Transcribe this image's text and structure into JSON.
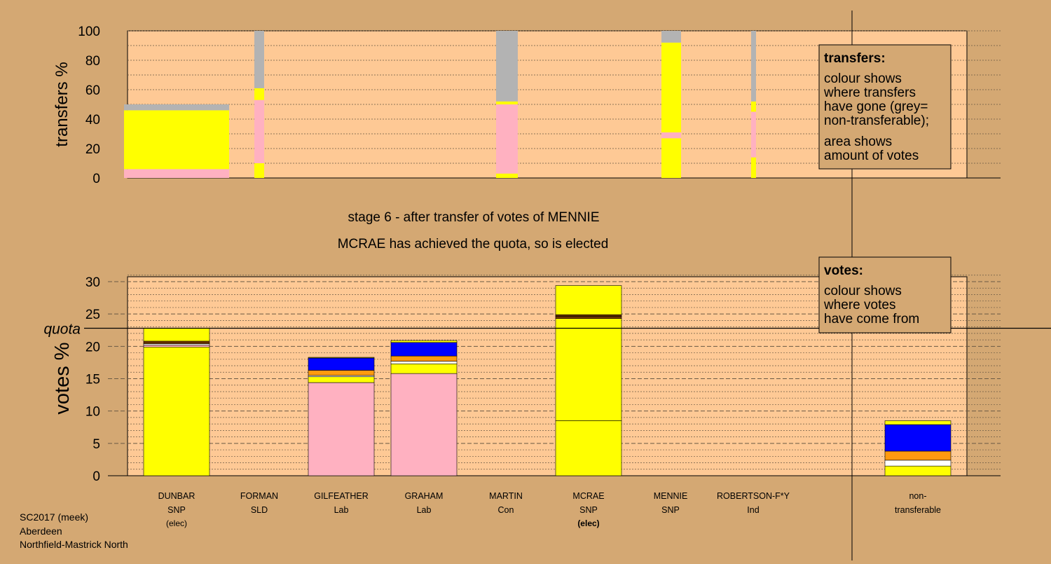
{
  "colors": {
    "background": "#d4a873",
    "plot_bg": "#fec995",
    "snp": "#ffff00",
    "lab": "#ffb1c1",
    "ld": "#ff9a0f",
    "con": "#0000ff",
    "ind": "#ffffff",
    "grey": "#b3b3b3",
    "dark": "#7f3a00",
    "black": "#000000"
  },
  "stage_title": "stage 6 - after transfer of votes of MENNIE",
  "stage_subtitle": "MCRAE has achieved the quota, so is elected",
  "footer": [
    "SC2017 (meek)",
    "Aberdeen",
    "Northfield-Mastrick North"
  ],
  "legend_transfers": {
    "title": "transfers:",
    "lines": [
      "colour shows",
      "where transfers",
      "have gone (grey=",
      "non-transferable);",
      "area shows",
      "amount of votes"
    ]
  },
  "legend_votes": {
    "title": "votes:",
    "lines": [
      "colour shows",
      "where votes",
      "have come from"
    ]
  },
  "chart_data": [
    {
      "type": "bar",
      "name": "transfers",
      "ylabel": "transfers %",
      "ylim": [
        0,
        100
      ],
      "yticks": [
        0,
        20,
        40,
        60,
        80,
        100
      ],
      "bars": [
        {
          "segments": [
            {
              "color": "lab",
              "from": 0,
              "to": 6
            },
            {
              "color": "snp",
              "from": 6,
              "to": 46
            },
            {
              "color": "grey",
              "from": 46,
              "to": 50
            }
          ]
        },
        {
          "segments": [
            {
              "color": "snp",
              "from": 0,
              "to": 10
            },
            {
              "color": "lab",
              "from": 10,
              "to": 53
            },
            {
              "color": "snp",
              "from": 53,
              "to": 61
            },
            {
              "color": "grey",
              "from": 61,
              "to": 100
            }
          ]
        },
        {
          "segments": [
            {
              "color": "snp",
              "from": 0,
              "to": 3
            },
            {
              "color": "lab",
              "from": 3,
              "to": 50
            },
            {
              "color": "snp",
              "from": 50,
              "to": 52
            },
            {
              "color": "grey",
              "from": 52,
              "to": 100
            }
          ]
        },
        {
          "segments": [
            {
              "color": "snp",
              "from": 0,
              "to": 27
            },
            {
              "color": "lab",
              "from": 27,
              "to": 31
            },
            {
              "color": "snp",
              "from": 31,
              "to": 92
            },
            {
              "color": "grey",
              "from": 92,
              "to": 100
            }
          ]
        },
        {
          "segments": [
            {
              "color": "snp",
              "from": 0,
              "to": 14
            },
            {
              "color": "lab",
              "from": 14,
              "to": 45
            },
            {
              "color": "snp",
              "from": 45,
              "to": 52
            },
            {
              "color": "grey",
              "from": 52,
              "to": 100
            }
          ]
        }
      ]
    },
    {
      "type": "bar",
      "name": "votes",
      "ylabel": "votes %",
      "ylim": [
        0,
        30
      ],
      "yticks": [
        0,
        5,
        10,
        15,
        20,
        25,
        30
      ],
      "quota": 22.8,
      "quota_label": "quota",
      "categories": [
        {
          "name": "DUNBAR",
          "party": "SNP",
          "note": "(elec)",
          "note_bold": false
        },
        {
          "name": "FORMAN",
          "party": "SLD",
          "note": "",
          "note_bold": false
        },
        {
          "name": "GILFEATHER",
          "party": "Lab",
          "note": "",
          "note_bold": false
        },
        {
          "name": "GRAHAM",
          "party": "Lab",
          "note": "",
          "note_bold": false
        },
        {
          "name": "MARTIN",
          "party": "Con",
          "note": "",
          "note_bold": false
        },
        {
          "name": "MCRAE",
          "party": "SNP",
          "note": "(elec)",
          "note_bold": true
        },
        {
          "name": "MENNIE",
          "party": "SNP",
          "note": "",
          "note_bold": false
        },
        {
          "name": "ROBERTSON-F*Y",
          "party": "Ind",
          "note": "",
          "note_bold": false
        },
        {
          "name": "non-",
          "party": "transferable",
          "note": "",
          "note_bold": false
        }
      ],
      "bars": [
        {
          "segments": [
            {
              "color": "snp",
              "from": 0,
              "to": 19.9
            },
            {
              "color": "lab",
              "from": 19.9,
              "to": 20.2
            },
            {
              "color": "ind",
              "from": 20.2,
              "to": 20.4
            },
            {
              "color": "ld",
              "from": 20.4,
              "to": 20.5
            },
            {
              "color": "dark",
              "from": 20.5,
              "to": 20.8
            },
            {
              "color": "snp",
              "from": 20.8,
              "to": 22.8
            }
          ]
        },
        {
          "segments": []
        },
        {
          "segments": [
            {
              "color": "lab",
              "from": 0,
              "to": 14.4
            },
            {
              "color": "snp",
              "from": 14.4,
              "to": 15.3
            },
            {
              "color": "ind",
              "from": 15.3,
              "to": 15.5
            },
            {
              "color": "ld",
              "from": 15.5,
              "to": 16.3
            },
            {
              "color": "con",
              "from": 16.3,
              "to": 18.2
            },
            {
              "color": "snp",
              "from": 18.2,
              "to": 18.3
            }
          ]
        },
        {
          "segments": [
            {
              "color": "lab",
              "from": 0,
              "to": 15.8
            },
            {
              "color": "snp",
              "from": 15.8,
              "to": 17.3
            },
            {
              "color": "ind",
              "from": 17.3,
              "to": 17.7
            },
            {
              "color": "ld",
              "from": 17.7,
              "to": 18.5
            },
            {
              "color": "con",
              "from": 18.5,
              "to": 20.6
            },
            {
              "color": "snp",
              "from": 20.6,
              "to": 20.9
            }
          ]
        },
        {
          "segments": []
        },
        {
          "segments": [
            {
              "color": "snp",
              "from": 0,
              "to": 8.5
            },
            {
              "color": "snp",
              "from": 8.5,
              "to": 24.3
            },
            {
              "color": "dark",
              "from": 24.3,
              "to": 24.6
            },
            {
              "color": "ld",
              "from": 24.6,
              "to": 24.7
            },
            {
              "color": "dark",
              "from": 24.7,
              "to": 24.9
            },
            {
              "color": "snp",
              "from": 24.9,
              "to": 29.4
            }
          ]
        },
        {
          "segments": []
        },
        {
          "segments": []
        },
        {
          "segments": [
            {
              "color": "snp",
              "from": 0,
              "to": 1.5
            },
            {
              "color": "ind",
              "from": 1.5,
              "to": 2.4
            },
            {
              "color": "ld",
              "from": 2.4,
              "to": 3.8
            },
            {
              "color": "con",
              "from": 3.8,
              "to": 7.9
            },
            {
              "color": "snp",
              "from": 7.9,
              "to": 8.5
            }
          ]
        }
      ]
    }
  ]
}
